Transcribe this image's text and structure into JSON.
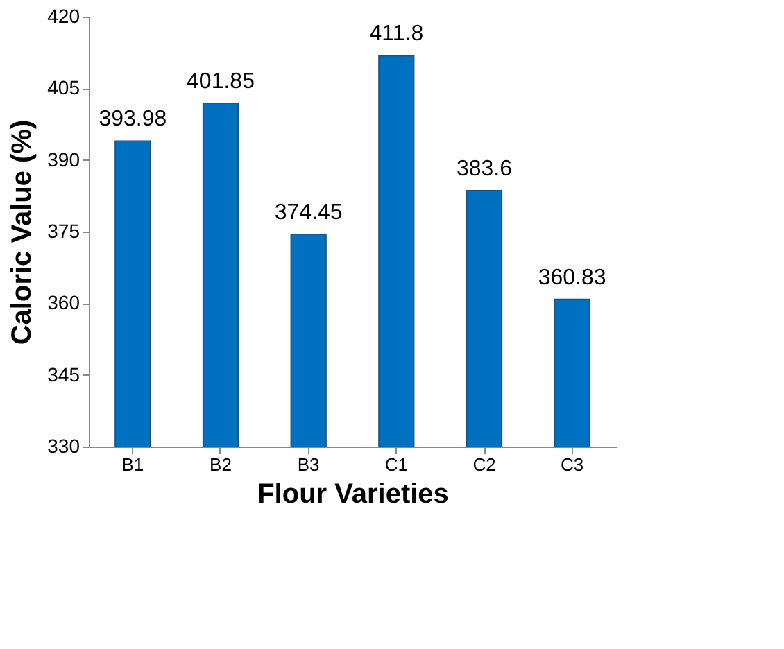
{
  "chart_data": {
    "type": "bar",
    "xlabel": "Flour Varieties",
    "ylabel": "Caloric Value (%)",
    "categories": [
      "B1",
      "B2",
      "B3",
      "C1",
      "C2",
      "C3"
    ],
    "values": [
      393.98,
      401.85,
      374.45,
      411.8,
      383.6,
      360.83
    ],
    "color": "#0070c0",
    "ylim": [
      330,
      420
    ],
    "yticks": [
      330,
      345,
      360,
      375,
      390,
      405,
      420
    ],
    "grid": false,
    "data_labels": true
  }
}
